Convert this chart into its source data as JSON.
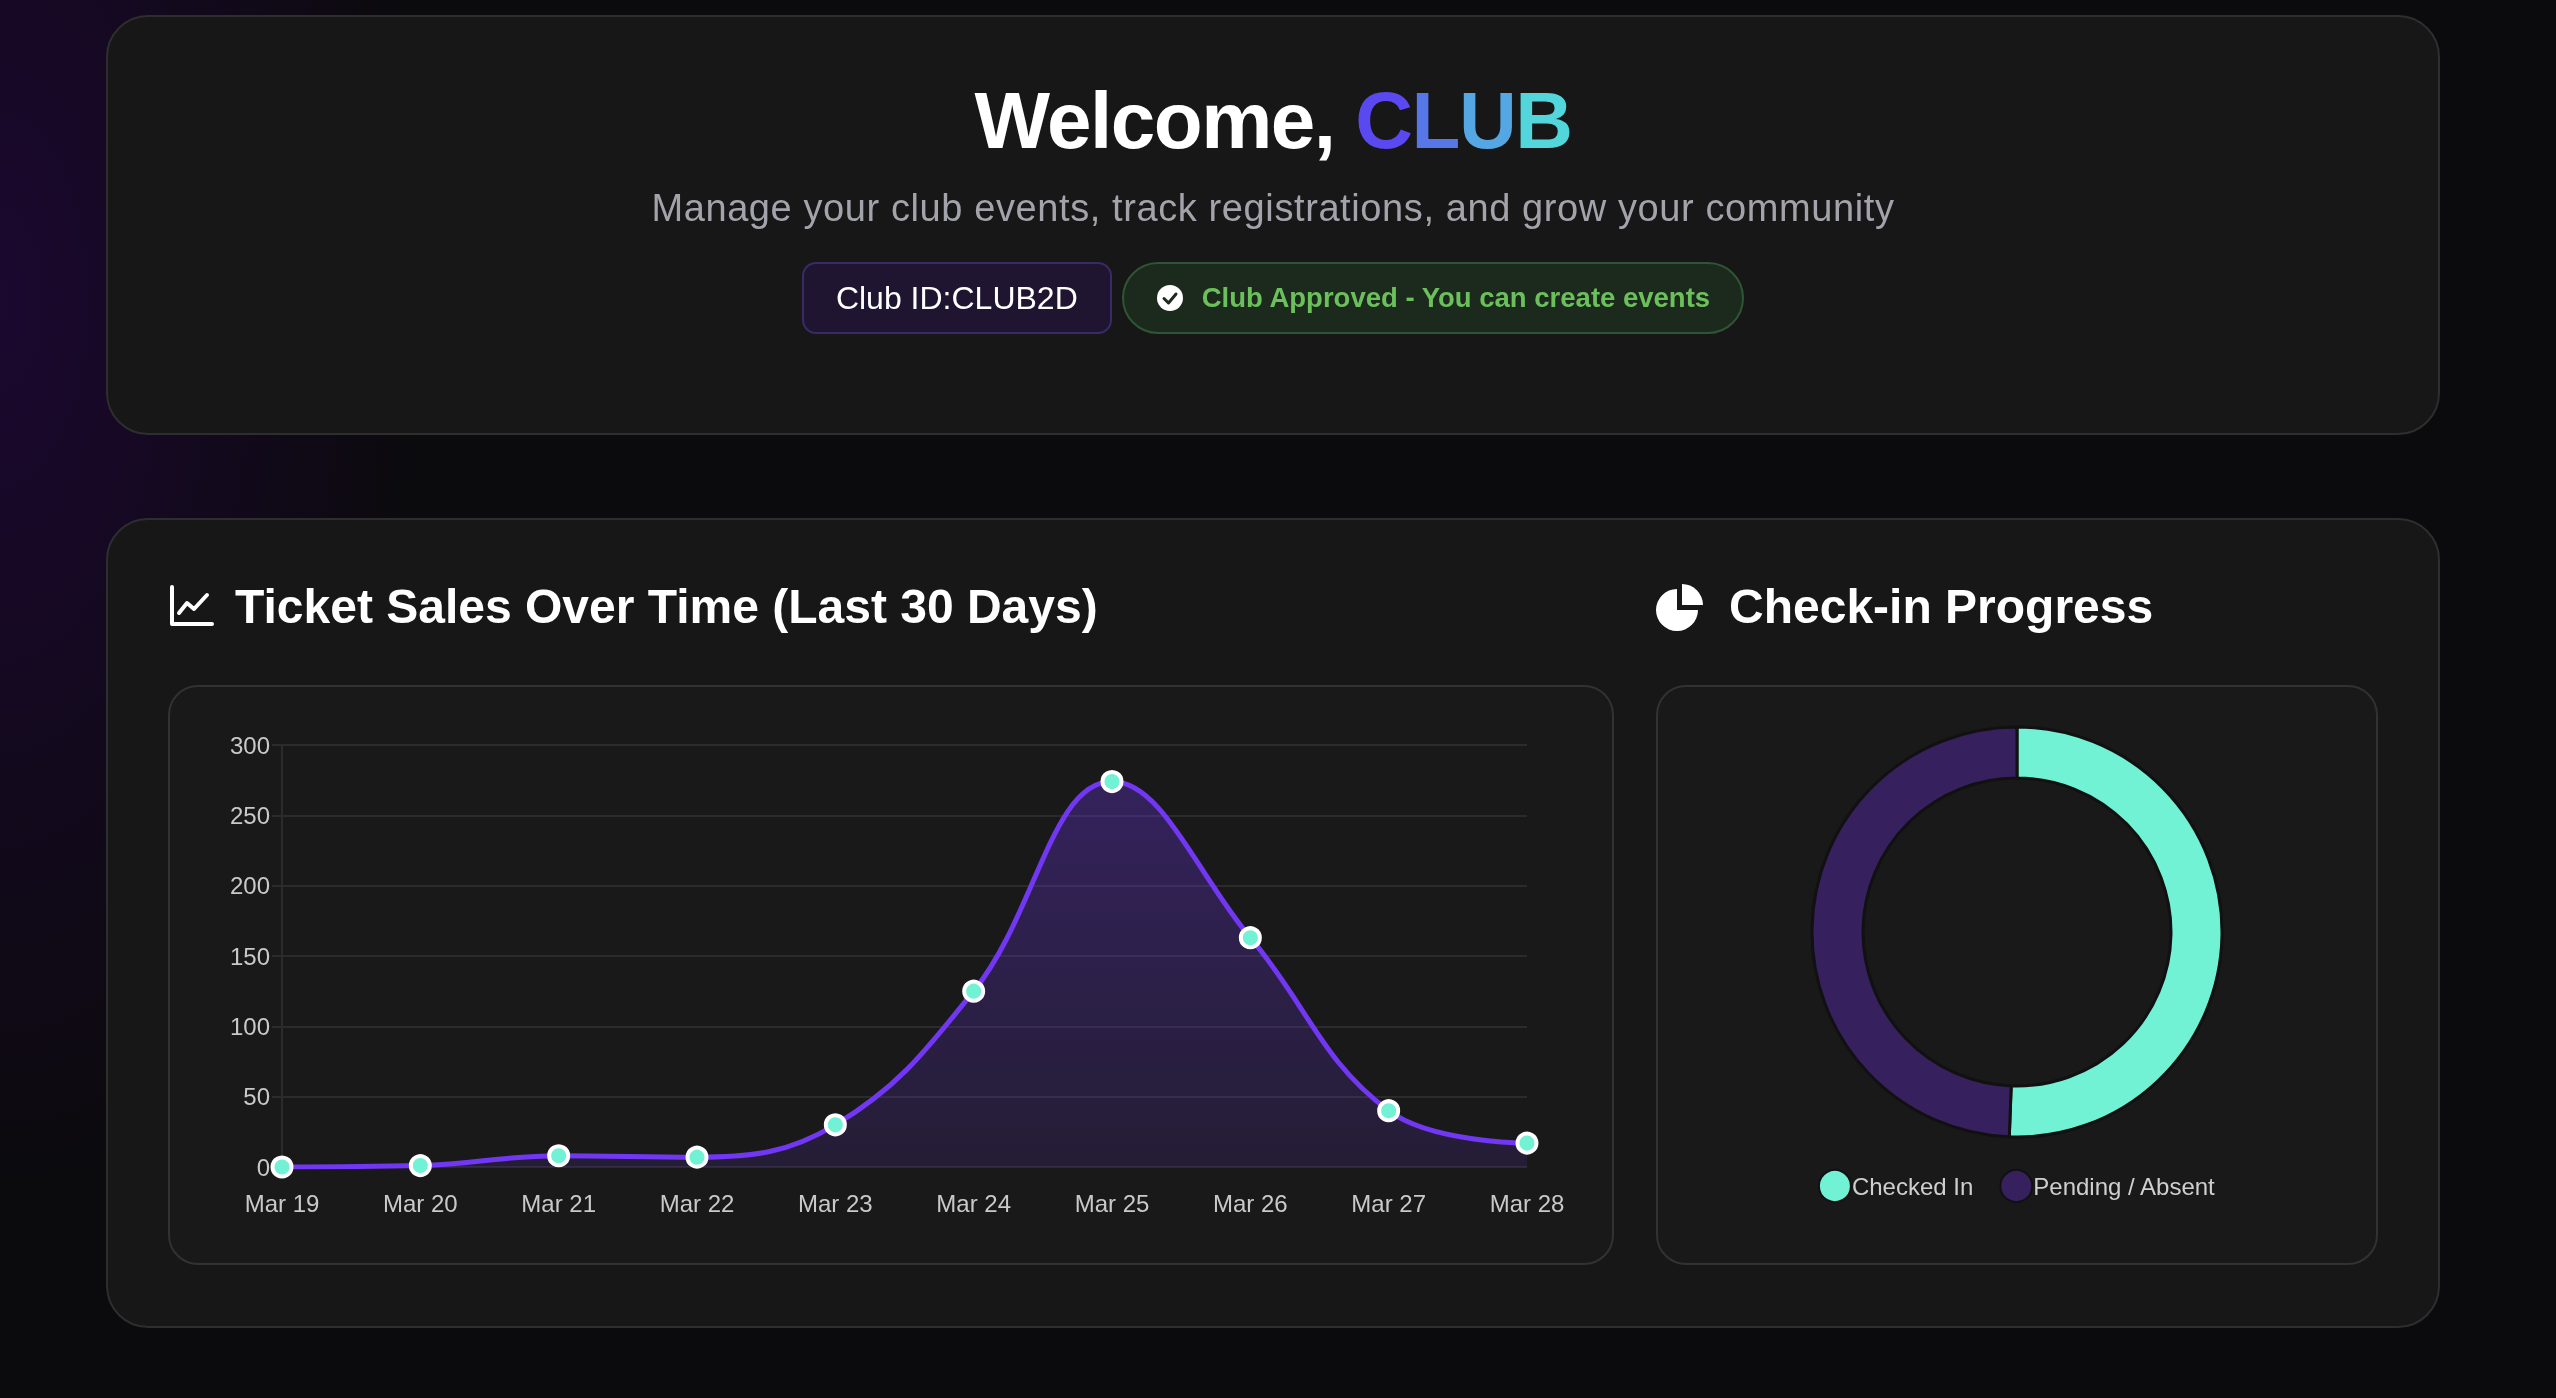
{
  "chart_data": [
    {
      "type": "other",
      "title": "Welcome, CLUB",
      "subtitle": "Manage your club events, track registrations, and grow your community",
      "annotations": [
        "Club ID:CLUB2D",
        "Club Approved - You can create events"
      ]
    },
    {
      "type": "area",
      "title": "Ticket Sales Over Time (Last 30 Days)",
      "categories": [
        "Mar 19",
        "Mar 20",
        "Mar 21",
        "Mar 22",
        "Mar 23",
        "Mar 24",
        "Mar 25",
        "Mar 26",
        "Mar 27",
        "Mar 28"
      ],
      "values": [
        0,
        1,
        8,
        7,
        30,
        125,
        274,
        163,
        40,
        17
      ],
      "color": "#7137f2",
      "ylim": [
        0,
        300
      ],
      "yticks": [
        0,
        50,
        100,
        150,
        200,
        250,
        300
      ],
      "grid": "y",
      "marker": "circle"
    },
    {
      "type": "donut",
      "title": "Check-in Progress",
      "categories": [
        "Checked In",
        "Pending / Absent"
      ],
      "values": [
        50.6,
        49.4
      ],
      "colors": [
        "#72f2d4",
        "#36215e"
      ],
      "legend": "bottom"
    }
  ]
}
